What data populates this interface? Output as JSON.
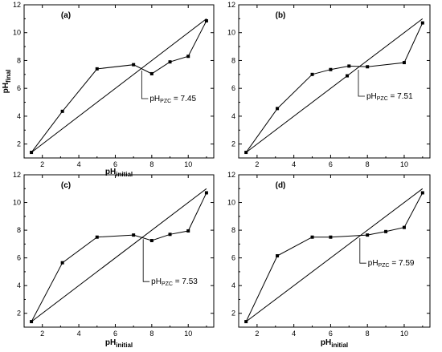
{
  "chart_data": [
    {
      "type": "line",
      "panel_label": "(a)",
      "xlabel": "pH",
      "xlabel_sub": "initial",
      "ylabel": "pH",
      "ylabel_sub": "final",
      "xlim": [
        1,
        11.4
      ],
      "ylim": [
        1,
        12
      ],
      "xticks": [
        2,
        4,
        6,
        8,
        10
      ],
      "yticks": [
        2,
        4,
        6,
        8,
        10,
        12
      ],
      "series": [
        {
          "x": [
            1.4,
            3.1,
            5.0,
            7.0,
            8.0,
            9.0,
            10.0,
            11.0
          ],
          "y": [
            1.4,
            4.35,
            7.4,
            7.7,
            7.05,
            7.9,
            8.3,
            10.85
          ]
        },
        {
          "x": [
            1.4,
            11.0
          ],
          "y": [
            1.4,
            11.0
          ],
          "markers": false
        }
      ],
      "annotation": {
        "prefix": "pH",
        "sub": "PZC",
        "suffix": " = 7.45",
        "x": 7.45,
        "y": 7.45
      }
    },
    {
      "type": "line",
      "panel_label": "(b)",
      "xlabel": "",
      "xlabel_sub": "",
      "ylabel": "",
      "ylabel_sub": "",
      "xlim": [
        1,
        11.4
      ],
      "ylim": [
        1,
        12
      ],
      "xticks": [
        2,
        4,
        6,
        8,
        10
      ],
      "yticks": [
        2,
        4,
        6,
        8,
        10,
        12
      ],
      "series": [
        {
          "x": [
            1.4,
            3.1,
            5.0,
            6.0,
            7.0,
            8.0,
            10.0,
            11.0
          ],
          "y": [
            1.4,
            4.55,
            7.0,
            7.35,
            7.6,
            7.55,
            7.85,
            10.7
          ]
        },
        {
          "x": [
            1.4,
            11.0
          ],
          "y": [
            1.4,
            11.0
          ],
          "markers": false
        },
        {
          "x": [
            6.9
          ],
          "y": [
            6.9
          ],
          "line": false
        }
      ],
      "annotation": {
        "prefix": "pH",
        "sub": "PZC",
        "suffix": " = 7.51",
        "x": 7.51,
        "y": 7.51
      }
    },
    {
      "type": "line",
      "panel_label": "(c)",
      "xlabel": "pH",
      "xlabel_sub": "initial",
      "ylabel": "",
      "ylabel_sub": "",
      "xlim": [
        1,
        11.4
      ],
      "ylim": [
        1,
        12
      ],
      "xticks": [
        2,
        4,
        6,
        8,
        10
      ],
      "yticks": [
        2,
        4,
        6,
        8,
        10,
        12
      ],
      "series": [
        {
          "x": [
            1.4,
            3.1,
            5.0,
            7.0,
            8.0,
            9.0,
            10.0,
            11.0
          ],
          "y": [
            1.4,
            5.65,
            7.5,
            7.65,
            7.25,
            7.7,
            7.95,
            10.7
          ]
        },
        {
          "x": [
            1.4,
            11.0
          ],
          "y": [
            1.4,
            11.0
          ],
          "markers": false
        }
      ],
      "annotation": {
        "prefix": "pH",
        "sub": "PZC",
        "suffix": " = 7.53",
        "x": 7.53,
        "y": 7.53
      }
    },
    {
      "type": "line",
      "panel_label": "(d)",
      "xlabel": "pH",
      "xlabel_sub": "initial",
      "ylabel": "",
      "ylabel_sub": "",
      "xlim": [
        1,
        11.4
      ],
      "ylim": [
        1,
        12
      ],
      "xticks": [
        2,
        4,
        6,
        8,
        10
      ],
      "yticks": [
        2,
        4,
        6,
        8,
        10,
        12
      ],
      "series": [
        {
          "x": [
            1.4,
            3.1,
            5.0,
            6.0,
            8.0,
            9.0,
            10.0,
            11.0
          ],
          "y": [
            1.4,
            6.15,
            7.5,
            7.5,
            7.65,
            7.9,
            8.2,
            10.7
          ]
        },
        {
          "x": [
            1.4,
            11.0
          ],
          "y": [
            1.4,
            11.0
          ],
          "markers": false
        }
      ],
      "annotation": {
        "prefix": "pH",
        "sub": "PZC",
        "suffix": " = 7.59",
        "x": 7.59,
        "y": 7.59
      }
    }
  ]
}
